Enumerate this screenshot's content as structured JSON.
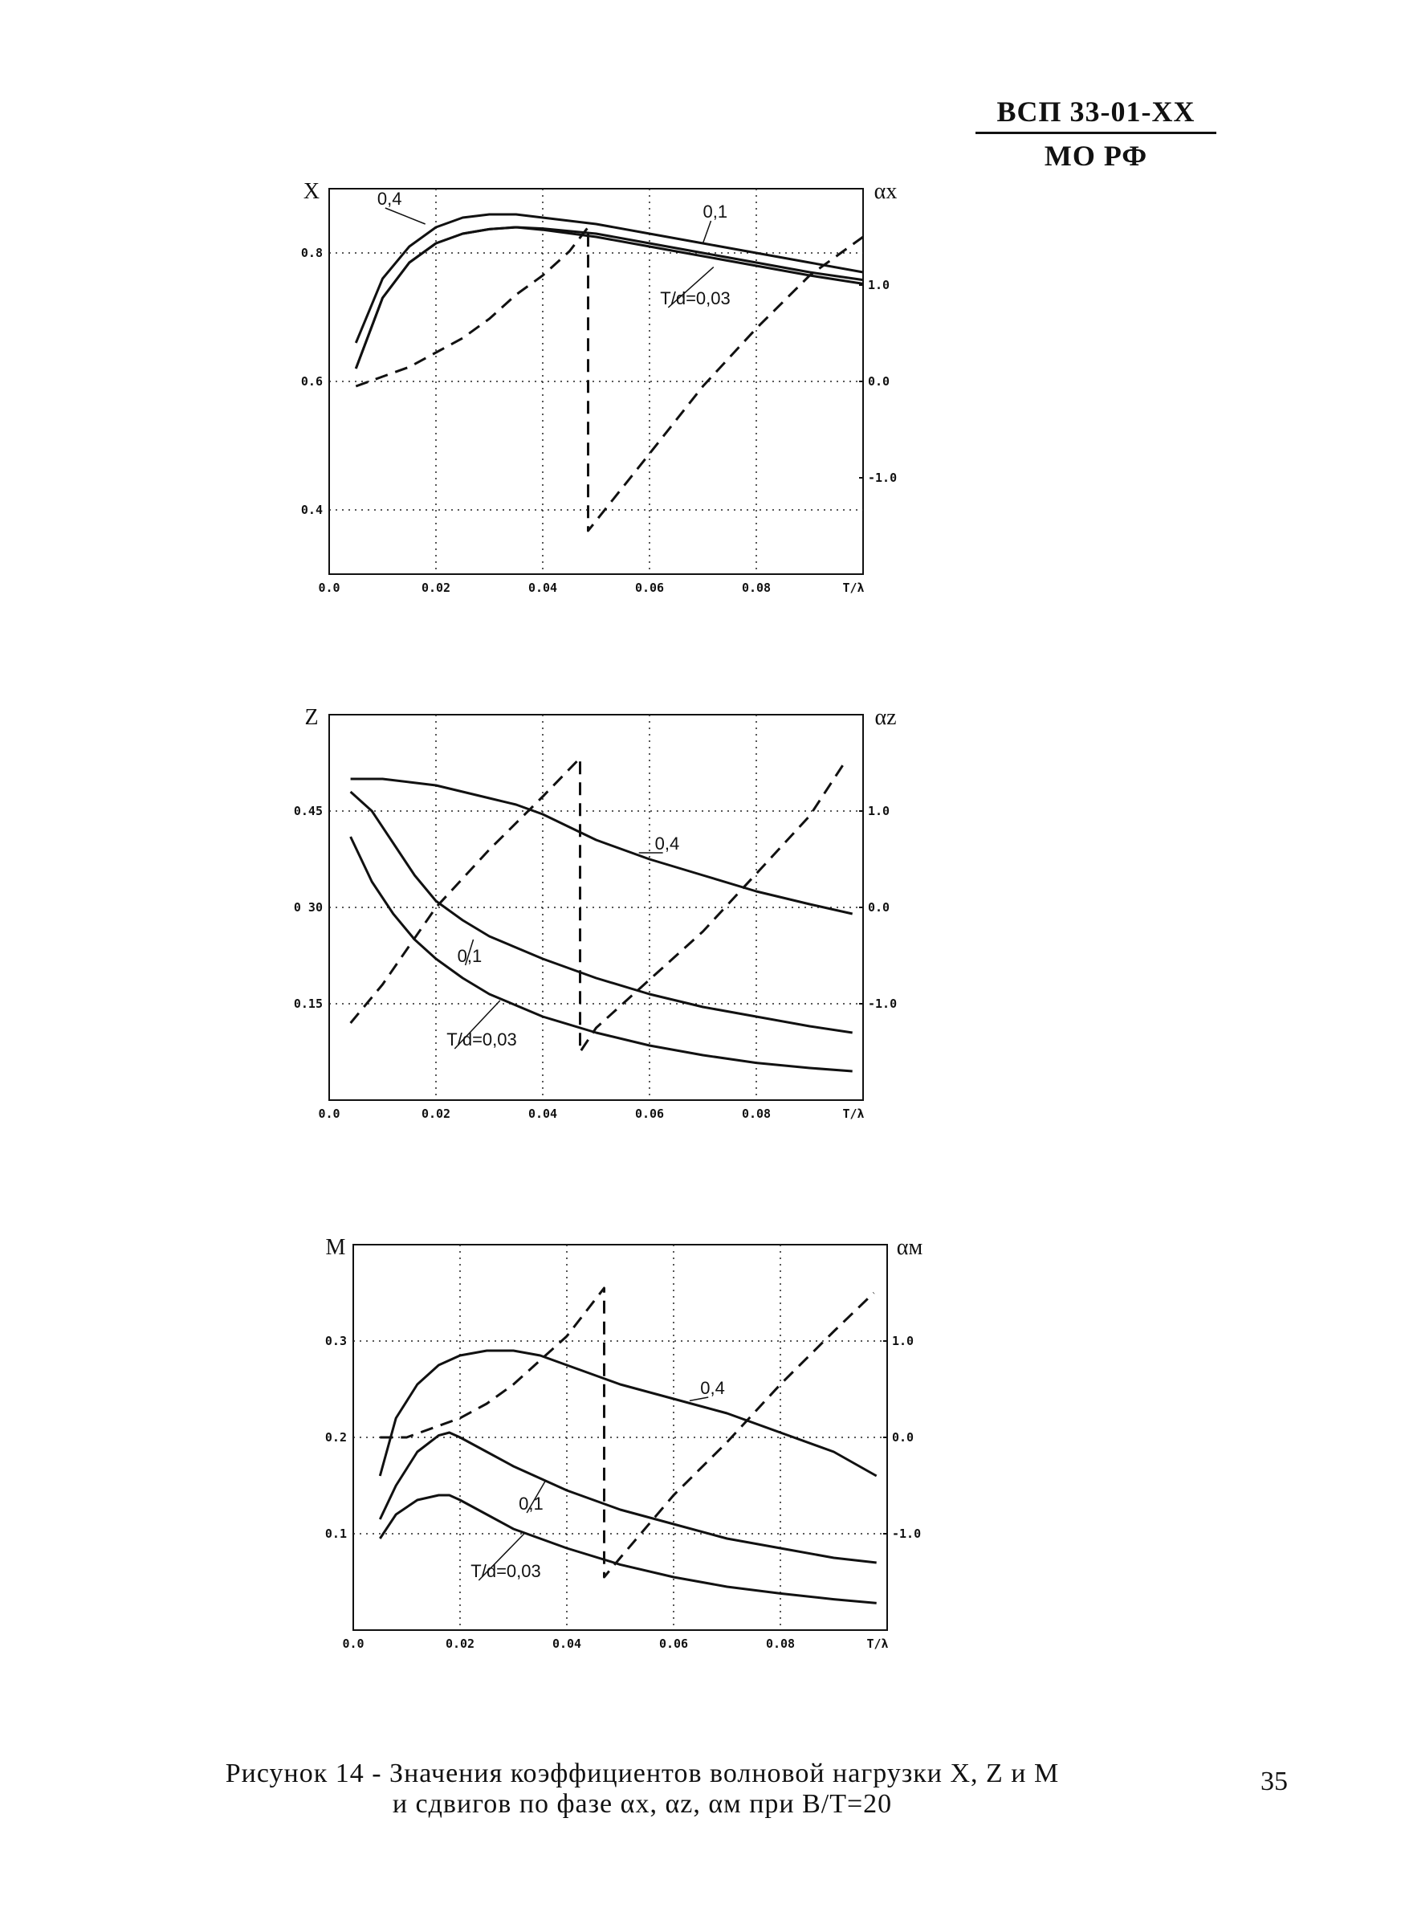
{
  "header": {
    "doc_code": "ВСП 33-01-XX",
    "org": "МО РФ"
  },
  "caption": {
    "line1": "Рисунок 14 - Значения коэффициентов волновой нагрузки X, Z и M",
    "line2": "и сдвигов по фазе αx, αz, αм при B/T=20"
  },
  "page_number": "35",
  "chart_data": [
    {
      "type": "line",
      "ylabel": "X",
      "y2label": "αx",
      "xlabel": "T/λ",
      "xlim": [
        0,
        0.1
      ],
      "ylim": [
        0.3,
        0.9
      ],
      "y2lim": [
        -2.0,
        2.0
      ],
      "grid": true,
      "x_ticks": [
        "0.0",
        "0.02",
        "0.04",
        "0.06",
        "0.08"
      ],
      "y_ticks": [
        {
          "v": 0.4,
          "t": "0.4"
        },
        {
          "v": 0.6,
          "t": "0.6"
        },
        {
          "v": 0.8,
          "t": "0.8"
        }
      ],
      "y2_ticks": [
        {
          "v": -1.0,
          "t": "-1.0"
        },
        {
          "v": 0.0,
          "t": "0.0"
        },
        {
          "v": 1.0,
          "t": "1.0"
        }
      ],
      "series": [
        {
          "name": "0,4",
          "axis": "left",
          "style": "solid",
          "x": [
            0.005,
            0.01,
            0.015,
            0.02,
            0.025,
            0.03,
            0.035,
            0.04,
            0.05,
            0.06,
            0.07,
            0.08,
            0.09,
            0.1
          ],
          "y": [
            0.66,
            0.76,
            0.81,
            0.84,
            0.855,
            0.86,
            0.86,
            0.855,
            0.845,
            0.83,
            0.815,
            0.8,
            0.785,
            0.77
          ]
        },
        {
          "name": "0,1",
          "axis": "left",
          "style": "solid",
          "x": [
            0.005,
            0.01,
            0.015,
            0.02,
            0.025,
            0.03,
            0.035,
            0.04,
            0.05,
            0.06,
            0.07,
            0.08,
            0.09,
            0.1
          ],
          "y": [
            0.62,
            0.73,
            0.785,
            0.815,
            0.83,
            0.837,
            0.84,
            0.838,
            0.83,
            0.815,
            0.8,
            0.785,
            0.77,
            0.758
          ]
        },
        {
          "name": "T/d=0,03",
          "axis": "left",
          "style": "solid",
          "x": [
            0.005,
            0.01,
            0.015,
            0.02,
            0.025,
            0.03,
            0.035,
            0.04,
            0.05,
            0.06,
            0.07,
            0.08,
            0.09,
            0.1
          ],
          "y": [
            0.62,
            0.73,
            0.785,
            0.815,
            0.83,
            0.837,
            0.84,
            0.836,
            0.825,
            0.81,
            0.795,
            0.78,
            0.765,
            0.752
          ]
        },
        {
          "name": "αx",
          "axis": "right",
          "style": "dashed",
          "x": [
            0.005,
            0.01,
            0.015,
            0.02,
            0.025,
            0.03,
            0.035,
            0.04,
            0.045,
            0.0485,
            0.0485,
            0.06,
            0.07,
            0.08,
            0.09,
            0.1
          ],
          "y": [
            -0.05,
            0.05,
            0.15,
            0.3,
            0.45,
            0.65,
            0.9,
            1.1,
            1.35,
            1.6,
            -1.55,
            -0.75,
            -0.05,
            0.55,
            1.1,
            1.5
          ]
        }
      ],
      "labels": [
        {
          "text": "0,4",
          "at": [
            0.009,
            0.875
          ],
          "to": [
            0.018,
            0.845
          ]
        },
        {
          "text": "0,1",
          "at": [
            0.07,
            0.855
          ],
          "to": [
            0.07,
            0.815
          ]
        },
        {
          "text": "T/d=0,03",
          "at": [
            0.062,
            0.72
          ],
          "to": [
            0.072,
            0.778
          ]
        }
      ]
    },
    {
      "type": "line",
      "ylabel": "Z",
      "y2label": "αz",
      "xlabel": "T/λ",
      "xlim": [
        0,
        0.1
      ],
      "ylim": [
        0.0,
        0.6
      ],
      "y2lim": [
        -2.0,
        2.0
      ],
      "grid": true,
      "x_ticks": [
        "0.0",
        "0.02",
        "0.04",
        "0.06",
        "0.08"
      ],
      "y_ticks": [
        {
          "v": 0.15,
          "t": "0.15"
        },
        {
          "v": 0.3,
          "t": "0 30"
        },
        {
          "v": 0.45,
          "t": "0.45"
        }
      ],
      "y2_ticks": [
        {
          "v": -1.0,
          "t": "-1.0"
        },
        {
          "v": 0.0,
          "t": "0.0"
        },
        {
          "v": 1.0,
          "t": "1.0"
        }
      ],
      "series": [
        {
          "name": "0,4",
          "axis": "left",
          "style": "solid",
          "x": [
            0.004,
            0.01,
            0.015,
            0.02,
            0.025,
            0.03,
            0.035,
            0.04,
            0.045,
            0.05,
            0.055,
            0.06,
            0.07,
            0.08,
            0.09,
            0.098
          ],
          "y": [
            0.5,
            0.5,
            0.495,
            0.49,
            0.48,
            0.47,
            0.46,
            0.445,
            0.425,
            0.405,
            0.39,
            0.375,
            0.35,
            0.325,
            0.305,
            0.29
          ]
        },
        {
          "name": "0,1",
          "axis": "left",
          "style": "solid",
          "x": [
            0.004,
            0.008,
            0.012,
            0.016,
            0.02,
            0.025,
            0.03,
            0.04,
            0.05,
            0.06,
            0.07,
            0.08,
            0.09,
            0.098
          ],
          "y": [
            0.48,
            0.45,
            0.4,
            0.35,
            0.31,
            0.28,
            0.255,
            0.22,
            0.19,
            0.165,
            0.145,
            0.13,
            0.115,
            0.105
          ]
        },
        {
          "name": "T/d=0,03",
          "axis": "left",
          "style": "solid",
          "x": [
            0.004,
            0.008,
            0.012,
            0.016,
            0.02,
            0.025,
            0.03,
            0.04,
            0.05,
            0.06,
            0.07,
            0.08,
            0.09,
            0.098
          ],
          "y": [
            0.41,
            0.34,
            0.29,
            0.25,
            0.22,
            0.19,
            0.165,
            0.13,
            0.105,
            0.085,
            0.07,
            0.058,
            0.05,
            0.045
          ]
        },
        {
          "name": "αz",
          "axis": "right",
          "style": "dashed",
          "x": [
            0.004,
            0.01,
            0.02,
            0.03,
            0.04,
            0.047,
            0.047,
            0.05,
            0.06,
            0.07,
            0.08,
            0.09,
            0.0965
          ],
          "y": [
            -1.2,
            -0.8,
            0.0,
            0.6,
            1.15,
            1.55,
            -1.5,
            -1.25,
            -0.75,
            -0.25,
            0.35,
            0.95,
            1.5
          ]
        }
      ],
      "labels": [
        {
          "text": "0,4",
          "at": [
            0.061,
            0.39
          ],
          "to": [
            0.058,
            0.385
          ]
        },
        {
          "text": "0,1",
          "at": [
            0.024,
            0.215
          ],
          "to": [
            0.027,
            0.25
          ]
        },
        {
          "text": "T/d=0,03",
          "at": [
            0.022,
            0.085
          ],
          "to": [
            0.032,
            0.155
          ]
        }
      ]
    },
    {
      "type": "line",
      "ylabel": "M",
      "y2label": "αм",
      "xlabel": "T/λ",
      "xlim": [
        0,
        0.1
      ],
      "ylim": [
        0.0,
        0.4
      ],
      "y2lim": [
        -2.0,
        2.0
      ],
      "grid": true,
      "x_ticks": [
        "0.0",
        "0.02",
        "0.04",
        "0.06",
        "0.08"
      ],
      "y_ticks": [
        {
          "v": 0.1,
          "t": "0.1"
        },
        {
          "v": 0.2,
          "t": "0.2"
        },
        {
          "v": 0.3,
          "t": "0.3"
        }
      ],
      "y2_ticks": [
        {
          "v": -1.0,
          "t": "-1.0"
        },
        {
          "v": 0.0,
          "t": "0.0"
        },
        {
          "v": 1.0,
          "t": "1.0"
        }
      ],
      "series": [
        {
          "name": "0,4",
          "axis": "left",
          "style": "solid",
          "x": [
            0.005,
            0.008,
            0.012,
            0.016,
            0.02,
            0.025,
            0.03,
            0.035,
            0.04,
            0.05,
            0.06,
            0.07,
            0.08,
            0.09,
            0.098
          ],
          "y": [
            0.16,
            0.22,
            0.255,
            0.275,
            0.285,
            0.29,
            0.29,
            0.285,
            0.275,
            0.255,
            0.24,
            0.225,
            0.205,
            0.185,
            0.16
          ]
        },
        {
          "name": "0,1",
          "axis": "left",
          "style": "solid",
          "x": [
            0.005,
            0.008,
            0.012,
            0.016,
            0.018,
            0.02,
            0.025,
            0.03,
            0.04,
            0.05,
            0.06,
            0.07,
            0.08,
            0.09,
            0.098
          ],
          "y": [
            0.115,
            0.15,
            0.185,
            0.202,
            0.205,
            0.2,
            0.185,
            0.17,
            0.145,
            0.125,
            0.11,
            0.095,
            0.085,
            0.075,
            0.07
          ]
        },
        {
          "name": "T/d=0,03",
          "axis": "left",
          "style": "solid",
          "x": [
            0.005,
            0.008,
            0.012,
            0.016,
            0.018,
            0.02,
            0.025,
            0.03,
            0.04,
            0.05,
            0.06,
            0.07,
            0.08,
            0.09,
            0.098
          ],
          "y": [
            0.095,
            0.12,
            0.135,
            0.14,
            0.14,
            0.135,
            0.12,
            0.105,
            0.085,
            0.068,
            0.055,
            0.045,
            0.038,
            0.032,
            0.028
          ]
        },
        {
          "name": "αм",
          "axis": "right",
          "style": "dashed",
          "x": [
            0.005,
            0.01,
            0.015,
            0.02,
            0.025,
            0.03,
            0.035,
            0.04,
            0.047,
            0.047,
            0.05,
            0.06,
            0.07,
            0.08,
            0.09,
            0.0975
          ],
          "y": [
            0.0,
            0.0,
            0.1,
            0.2,
            0.35,
            0.55,
            0.8,
            1.05,
            1.55,
            -1.45,
            -1.25,
            -0.6,
            -0.05,
            0.55,
            1.1,
            1.5
          ]
        }
      ],
      "labels": [
        {
          "text": "0,4",
          "at": [
            0.065,
            0.245
          ],
          "to": [
            0.063,
            0.238
          ]
        },
        {
          "text": "0,1",
          "at": [
            0.031,
            0.125
          ],
          "to": [
            0.036,
            0.155
          ]
        },
        {
          "text": "T/d=0,03",
          "at": [
            0.022,
            0.055
          ],
          "to": [
            0.032,
            0.1
          ]
        }
      ]
    }
  ]
}
